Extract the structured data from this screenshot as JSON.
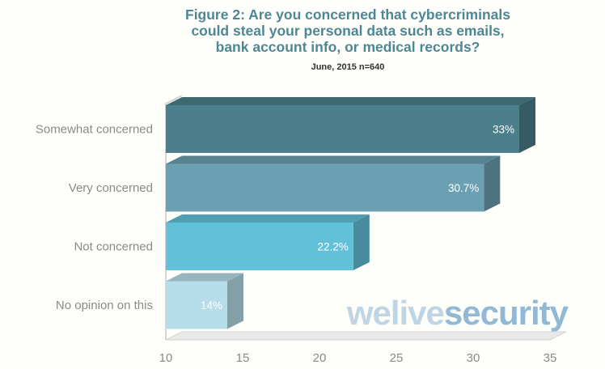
{
  "chart_data": {
    "type": "bar",
    "orientation": "horizontal",
    "title_lines": [
      "Figure 2: Are you concerned that cybercriminals",
      "could steal your personal data such as emails,",
      "bank account info, or medical records?"
    ],
    "subtitle": "June, 2015 n=640",
    "categories": [
      "Somewhat concerned",
      "Very concerned",
      "Not concerned",
      "No opinion on this"
    ],
    "values": [
      33,
      30.7,
      22.2,
      14
    ],
    "value_labels": [
      "33%",
      "30.7%",
      "22.2%",
      "14%"
    ],
    "xlim": [
      10,
      35
    ],
    "xticks": [
      10,
      15,
      20,
      25,
      30,
      35
    ],
    "colors": [
      "#4b7f8b",
      "#6aa0b1",
      "#62c1d8",
      "#b6dde9"
    ],
    "watermark": {
      "part1": "welive",
      "part2": "security",
      "color1": "#b5cfe0",
      "color2": "#7eaed0"
    }
  }
}
